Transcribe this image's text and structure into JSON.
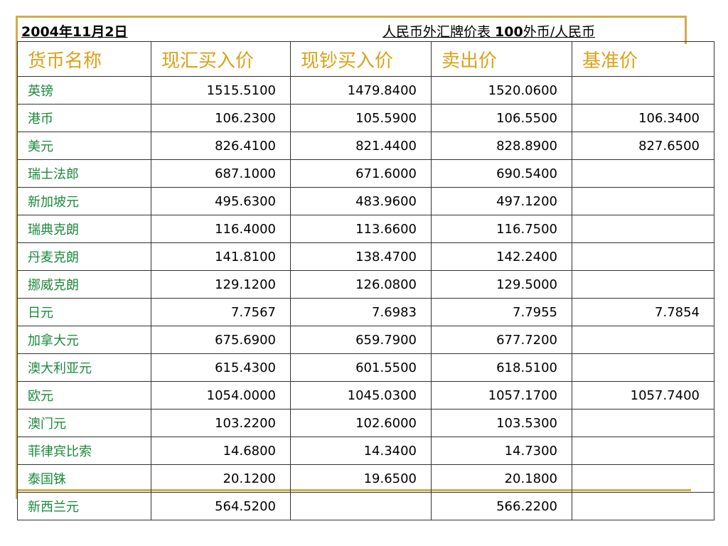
{
  "header": {
    "date": "2004年11月2日",
    "title_prefix": "人民币外汇牌价表 ",
    "title_bold": "100",
    "title_suffix": "外币/人民币"
  },
  "table": {
    "columns": [
      "货币名称",
      "现汇买入价",
      "现钞买入价",
      "卖出价",
      "基准价"
    ],
    "rows": [
      [
        "英镑",
        "1515.5100",
        "1479.8400",
        "1520.0600",
        ""
      ],
      [
        "港币",
        "106.2300",
        "105.5900",
        "106.5500",
        "106.3400"
      ],
      [
        "美元",
        "826.4100",
        "821.4400",
        "828.8900",
        "827.6500"
      ],
      [
        "瑞士法郎",
        "687.1000",
        "671.6000",
        "690.5400",
        ""
      ],
      [
        "新加坡元",
        "495.6300",
        "483.9600",
        "497.1200",
        ""
      ],
      [
        "瑞典克朗",
        "116.4000",
        "113.6600",
        "116.7500",
        ""
      ],
      [
        "丹麦克朗",
        "141.8100",
        "138.4700",
        "142.2400",
        ""
      ],
      [
        "挪威克朗",
        "129.1200",
        "126.0800",
        "129.5000",
        ""
      ],
      [
        "日元",
        "7.7567",
        "7.6983",
        "7.7955",
        "7.7854"
      ],
      [
        "加拿大元",
        "675.6900",
        "659.7900",
        "677.7200",
        ""
      ],
      [
        "澳大利亚元",
        "615.4300",
        "601.5500",
        "618.5100",
        ""
      ],
      [
        "欧元",
        "1054.0000",
        "1045.0300",
        "1057.1700",
        "1057.7400"
      ],
      [
        "澳门元",
        "103.2200",
        "102.6000",
        "103.5300",
        ""
      ],
      [
        "菲律宾比索",
        "14.6800",
        "14.3400",
        "14.7300",
        ""
      ],
      [
        "泰国铢",
        "20.1200",
        "19.6500",
        "20.1800",
        ""
      ],
      [
        "新西兰元",
        "564.5200",
        "",
        "566.2200",
        ""
      ]
    ]
  },
  "colors": {
    "header_text": "#d8a21a",
    "currency_name": "#1a8a3a",
    "frame_accent": "#d4ac4a"
  }
}
